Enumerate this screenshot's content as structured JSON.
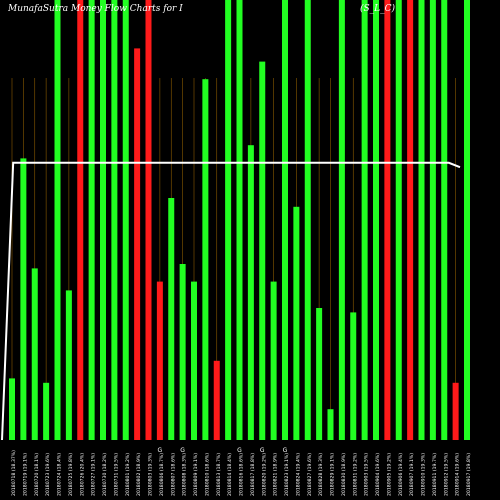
{
  "title": "MunafaSutra Money Flow Charts for I",
  "title_suffix": "(S_L_C)",
  "chart_data": {
    "type": "bar",
    "ylim": [
      0,
      100
    ],
    "grid": true,
    "colors": {
      "up": "#22ff22",
      "down": "#ff1a1a",
      "line": "#ffffff",
      "grid": "#8a5a00",
      "background": "#000000"
    },
    "bars": [
      {
        "value": 14,
        "color": "up"
      },
      {
        "value": 64,
        "color": "up"
      },
      {
        "value": 39,
        "color": "up"
      },
      {
        "value": 13,
        "color": "up"
      },
      {
        "value": 100,
        "color": "up"
      },
      {
        "value": 34,
        "color": "up"
      },
      {
        "value": 100,
        "color": "down"
      },
      {
        "value": 100,
        "color": "up"
      },
      {
        "value": 100,
        "color": "up"
      },
      {
        "value": 100,
        "color": "up"
      },
      {
        "value": 100,
        "color": "up"
      },
      {
        "value": 89,
        "color": "down"
      },
      {
        "value": 100,
        "color": "down"
      },
      {
        "value": 36,
        "color": "down"
      },
      {
        "value": 55,
        "color": "up"
      },
      {
        "value": 40,
        "color": "up"
      },
      {
        "value": 36,
        "color": "up"
      },
      {
        "value": 82,
        "color": "up"
      },
      {
        "value": 18,
        "color": "down"
      },
      {
        "value": 100,
        "color": "up"
      },
      {
        "value": 100,
        "color": "up"
      },
      {
        "value": 67,
        "color": "up"
      },
      {
        "value": 86,
        "color": "up"
      },
      {
        "value": 36,
        "color": "up"
      },
      {
        "value": 100,
        "color": "up"
      },
      {
        "value": 53,
        "color": "up"
      },
      {
        "value": 100,
        "color": "up"
      },
      {
        "value": 30,
        "color": "up"
      },
      {
        "value": 7,
        "color": "up"
      },
      {
        "value": 100,
        "color": "up"
      },
      {
        "value": 29,
        "color": "up"
      },
      {
        "value": 100,
        "color": "up"
      },
      {
        "value": 100,
        "color": "up"
      },
      {
        "value": 100,
        "color": "down"
      },
      {
        "value": 100,
        "color": "up"
      },
      {
        "value": 100,
        "color": "down"
      },
      {
        "value": 100,
        "color": "up"
      },
      {
        "value": 100,
        "color": "up"
      },
      {
        "value": 100,
        "color": "up"
      },
      {
        "value": 13,
        "color": "down"
      },
      {
        "value": 100,
        "color": "up"
      }
    ],
    "line": [
      0,
      63,
      63,
      63,
      63,
      63,
      63,
      63,
      63,
      63,
      63,
      63,
      63,
      63,
      63,
      63,
      63,
      63,
      63,
      63,
      63,
      63,
      63,
      63,
      63,
      63,
      63,
      63,
      63,
      63,
      63,
      63,
      63,
      63,
      63,
      63,
      63,
      63,
      63,
      63,
      63,
      62
    ],
    "x_labels": [
      "20180718 (18.37%)",
      "20180719 (19.1%)",
      "20180720 (18.1%)",
      "20180723 (19.6%)",
      "20180724 (18.4%)",
      "20180725 (19.8%)",
      "20180726 (20.4%)",
      "20180727 (19.1%)",
      "20180730 (18.2%)",
      "20180731 (19.5%)",
      "20180801 (19.2%)",
      "20180802 (18.9%)",
      "20180803 (19.3%)",
      "20180806 (18.7%)",
      "20180807 (18.6%)",
      "20180808 (18.3%)",
      "20180809 (19.1%)",
      "20180810 (18.6%)",
      "20180813 (18.7%)",
      "20180814 (18.4%)",
      "20180816 (18.6%)",
      "20180817 (18.8%)",
      "20180820 (19.2%)",
      "20180821 (18.9%)",
      "20180823 (19.1%)",
      "20180824 (19.4%)",
      "20180827 (19.6%)",
      "20180828 (19.3%)",
      "20180829 (19.1%)",
      "20180830 (18.9%)",
      "20180831 (19.2%)",
      "20180903 (19.5%)",
      "20180904 (19.6%)",
      "20180905 (19.2%)",
      "20180906 (19.4%)",
      "20180907 (19.1%)",
      "20180910 (19.3%)",
      "20180911 (19.7%)",
      "20180912 (19.5%)",
      "20180914 (19.6%)",
      "20180917 (19.8%)"
    ],
    "marker_labels": [
      {
        "index": 13,
        "text": "G"
      },
      {
        "index": 15,
        "text": "G"
      },
      {
        "index": 20,
        "text": "G"
      },
      {
        "index": 22,
        "text": "G"
      },
      {
        "index": 24,
        "text": "G"
      }
    ]
  }
}
